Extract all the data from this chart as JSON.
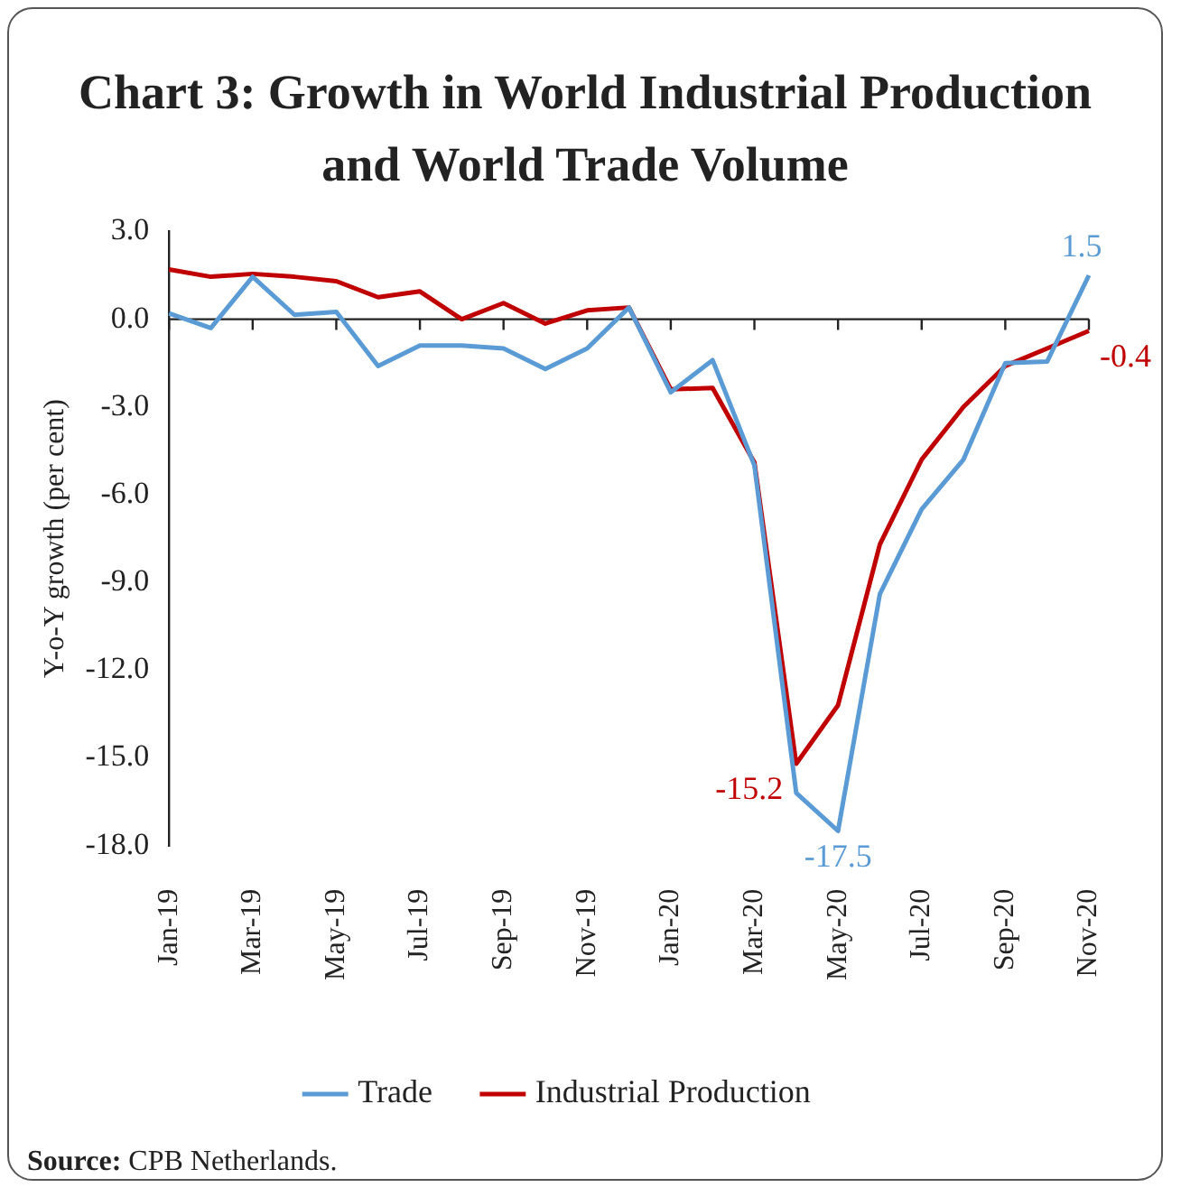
{
  "chart_data": {
    "type": "line",
    "title": "Chart 3: Growth in World Industrial Production and World Trade Volume",
    "ylabel": "Y-o-Y growth (per cent)",
    "categories": [
      "Jan-19",
      null,
      "Mar-19",
      null,
      "May-19",
      null,
      "Jul-19",
      null,
      "Sep-19",
      null,
      "Nov-19",
      null,
      "Jan-20",
      null,
      "Mar-20",
      null,
      "May-20",
      null,
      "Jul-20",
      null,
      "Sep-20",
      null,
      "Nov-20"
    ],
    "series": [
      {
        "name": "Trade",
        "color": "#5b9bd5",
        "values": [
          0.2,
          -0.3,
          1.45,
          0.15,
          0.25,
          -1.6,
          -0.9,
          -0.9,
          -1.0,
          -1.7,
          -1.0,
          0.4,
          -2.5,
          -1.4,
          -5.0,
          -16.2,
          -17.5,
          -9.4,
          -6.5,
          -4.8,
          -1.5,
          -1.45,
          1.5
        ],
        "value_labels": [
          null,
          null,
          null,
          null,
          null,
          null,
          null,
          null,
          null,
          null,
          null,
          null,
          null,
          null,
          null,
          null,
          "-17.5",
          null,
          null,
          null,
          null,
          null,
          "1.5"
        ]
      },
      {
        "name": "Industrial Production",
        "color": "#c00000",
        "values": [
          1.7,
          1.45,
          1.55,
          1.45,
          1.3,
          0.75,
          0.95,
          0.0,
          0.55,
          -0.15,
          0.3,
          0.4,
          -2.4,
          -2.35,
          -4.9,
          -15.2,
          -13.2,
          -7.7,
          -4.8,
          -3.0,
          -1.6,
          -1.0,
          -0.4
        ],
        "value_labels": [
          null,
          null,
          null,
          null,
          null,
          null,
          null,
          null,
          null,
          null,
          null,
          null,
          null,
          null,
          null,
          "-15.2",
          null,
          null,
          null,
          null,
          null,
          null,
          "-0.4"
        ]
      }
    ],
    "ylim": [
      -18,
      3
    ],
    "yticks": [
      {
        "value": 3,
        "label": "3.0"
      },
      {
        "value": 0,
        "label": "0.0"
      },
      {
        "value": -3,
        "label": "-3.0"
      },
      {
        "value": -6,
        "label": "-6.0"
      },
      {
        "value": -9,
        "label": "-9.0"
      },
      {
        "value": -12,
        "label": "-12.0"
      },
      {
        "value": -15,
        "label": "-15.0"
      },
      {
        "value": -18,
        "label": "-18.0"
      }
    ],
    "grid": false,
    "ref_lines": [
      {
        "axis": "y",
        "value": 0,
        "color": "#222222"
      }
    ],
    "legend": "bottom",
    "marker": "none",
    "line_style": "solid",
    "annotations": [
      "Source: CPB Netherlands."
    ]
  }
}
